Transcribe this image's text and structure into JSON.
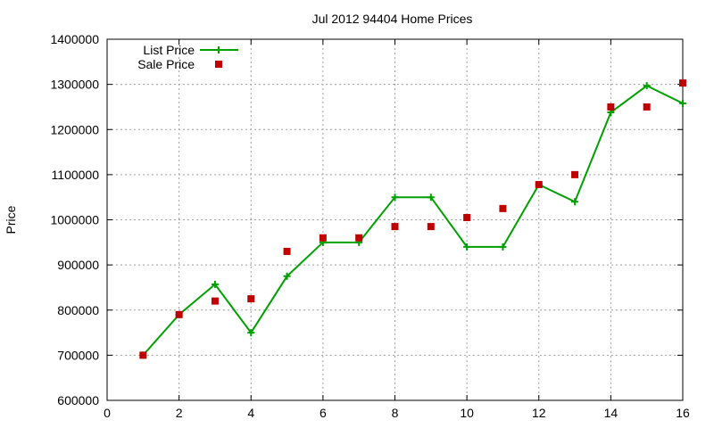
{
  "chart_data": {
    "type": "line",
    "title": "Jul 2012 94404 Home Prices",
    "xlabel": "",
    "ylabel": "Price",
    "xlim": [
      0,
      16
    ],
    "ylim": [
      600000,
      1400000
    ],
    "xticks": [
      0,
      2,
      4,
      6,
      8,
      10,
      12,
      14,
      16
    ],
    "yticks": [
      600000,
      700000,
      800000,
      900000,
      1000000,
      1100000,
      1200000,
      1300000,
      1400000
    ],
    "grid": true,
    "legend_position": "top-left",
    "series": [
      {
        "name": "List Price",
        "style": "line-plus",
        "color": "#00a000",
        "x": [
          1,
          2,
          3,
          4,
          5,
          6,
          7,
          8,
          9,
          10,
          11,
          12,
          13,
          14,
          15,
          16
        ],
        "y": [
          700000,
          790000,
          857000,
          750000,
          875000,
          950000,
          950000,
          1050000,
          1050000,
          940000,
          940000,
          1078000,
          1040000,
          1238000,
          1297000,
          1258000
        ]
      },
      {
        "name": "Sale Price",
        "style": "square-markers",
        "color": "#c00000",
        "x": [
          1,
          2,
          3,
          4,
          5,
          6,
          7,
          8,
          9,
          10,
          11,
          12,
          13,
          14,
          15,
          16
        ],
        "y": [
          700000,
          790000,
          820000,
          825000,
          930000,
          960000,
          960000,
          985000,
          985000,
          1005000,
          1025000,
          1078000,
          1100000,
          1250000,
          1250000,
          1303000
        ]
      }
    ]
  }
}
